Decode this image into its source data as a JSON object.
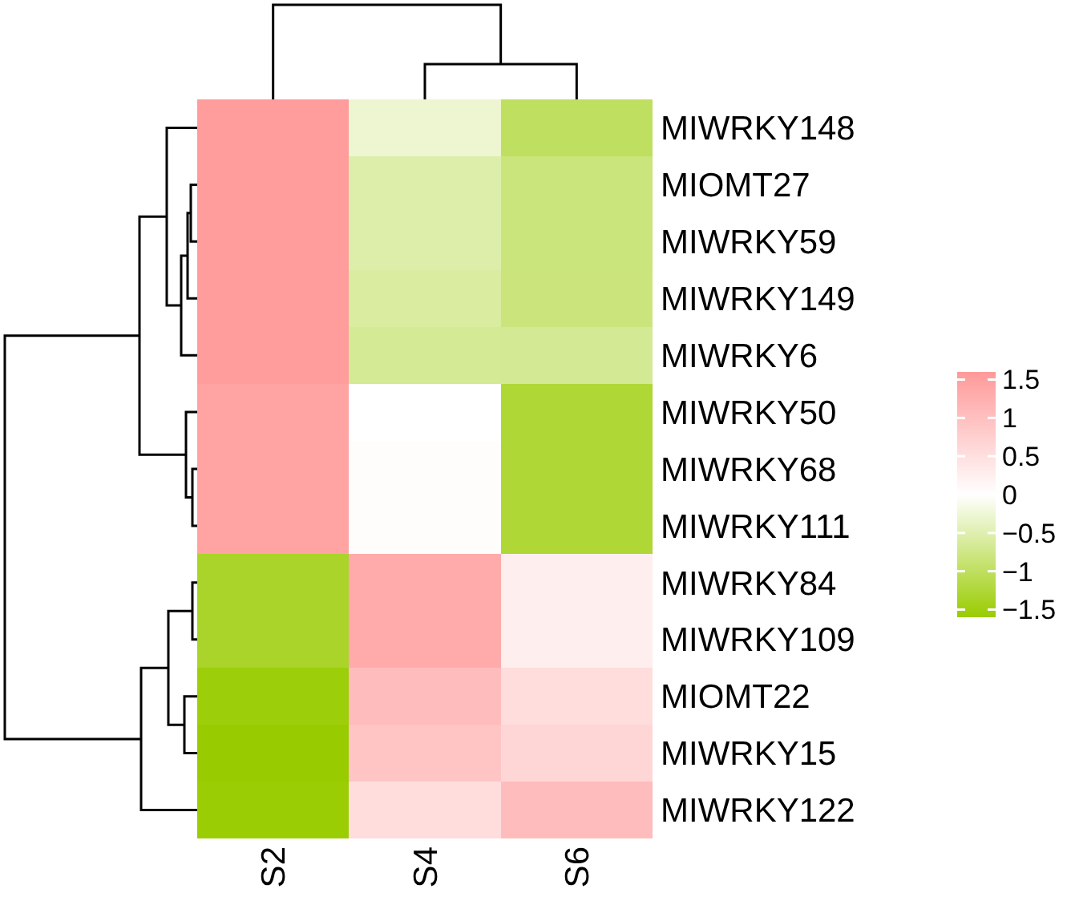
{
  "chart_data": {
    "type": "heatmap",
    "categories": [
      "S2",
      "S4",
      "S6"
    ],
    "y_categories": [
      "MIWRKY148",
      "MIOMT27",
      "MIWRKY59",
      "MIWRKY149",
      "MIWRKY6",
      "MIWRKY50",
      "MIWRKY68",
      "MIWRKY111",
      "MIWRKY84",
      "MIWRKY109",
      "MIOMT22",
      "MIWRKY15",
      "MIWRKY122"
    ],
    "cells": [
      [
        1.55,
        -0.29,
        -1.0
      ],
      [
        1.55,
        -0.53,
        -0.83
      ],
      [
        1.55,
        -0.53,
        -0.83
      ],
      [
        1.55,
        -0.6,
        -0.82
      ],
      [
        1.55,
        -0.67,
        -0.68
      ],
      [
        1.44,
        0.0,
        -1.26
      ],
      [
        1.44,
        0.05,
        -1.26
      ],
      [
        1.44,
        0.05,
        -1.26
      ],
      [
        -1.34,
        1.32,
        0.27
      ],
      [
        -1.34,
        1.32,
        0.27
      ],
      [
        -1.54,
        1.05,
        0.53
      ],
      [
        -1.6,
        0.93,
        0.64
      ],
      [
        -1.57,
        0.53,
        1.05
      ]
    ],
    "clim": [
      -1.6,
      1.6
    ],
    "cticks": [
      {
        "value": -1.5,
        "label": "−1.5"
      },
      {
        "value": -1,
        "label": "−1"
      },
      {
        "value": -0.5,
        "label": "−0.5"
      },
      0,
      0.5,
      1,
      1.5
    ]
  }
}
